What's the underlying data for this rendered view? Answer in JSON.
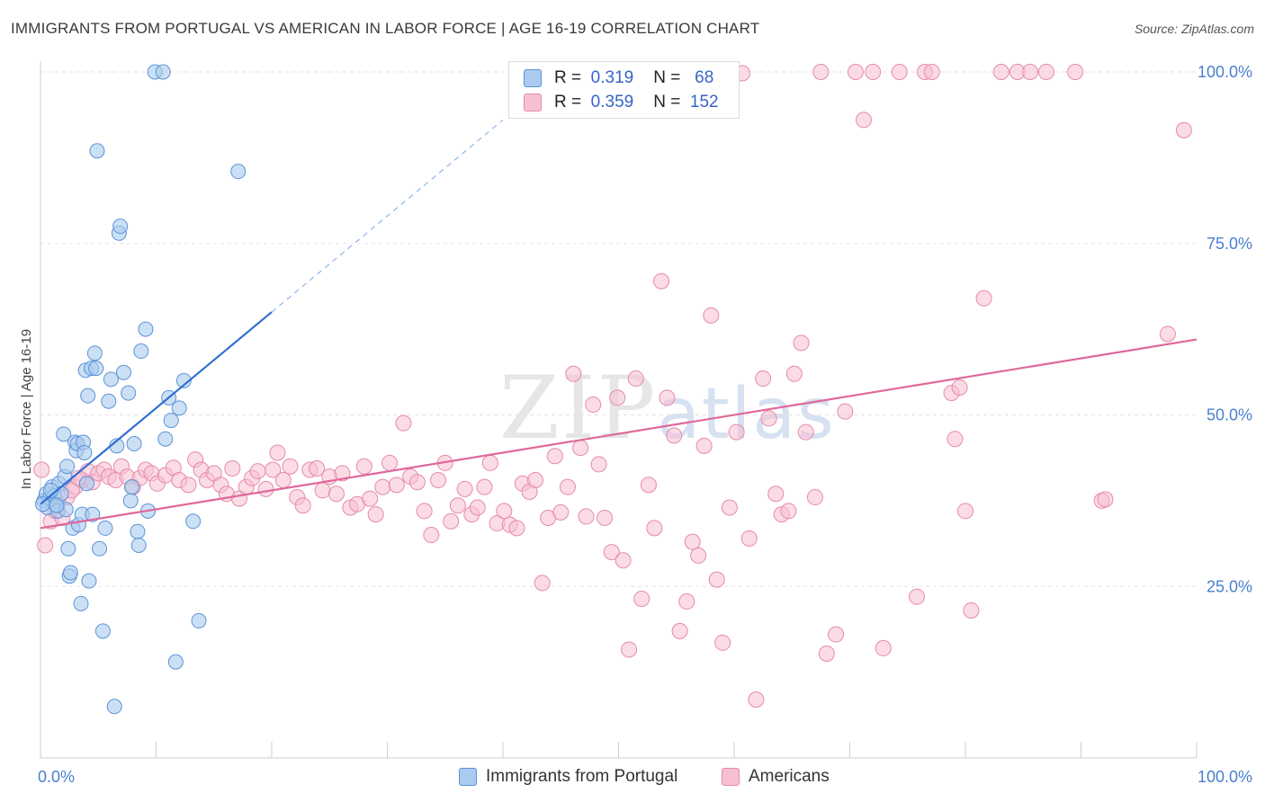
{
  "header": {
    "title": "IMMIGRANTS FROM PORTUGAL VS AMERICAN IN LABOR FORCE | AGE 16-19 CORRELATION CHART",
    "source": "Source: ZipAtlas.com"
  },
  "watermark": {
    "zip": "ZIP",
    "atlas": "atlas"
  },
  "legend": {
    "portugal": {
      "r_label": "R =",
      "r_value": "0.319",
      "n_label": "N =",
      "n_value": "68"
    },
    "americans": {
      "r_label": "R =",
      "r_value": "0.359",
      "n_label": "N =",
      "n_value": "152"
    }
  },
  "bottom_legend": {
    "portugal": "Immigrants from Portugal",
    "americans": "Americans"
  },
  "colors": {
    "portugal_fill": "#aacbef",
    "portugal_stroke": "#5b93d8",
    "portugal_line": "#2f6fd0",
    "americans_fill": "#f7c0d2",
    "americans_stroke": "#e68aa8",
    "americans_line": "#e0689a",
    "tick_text": "#4a7fd0"
  },
  "chart_data": {
    "type": "scatter",
    "title": "IMMIGRANTS FROM PORTUGAL VS AMERICAN IN LABOR FORCE | AGE 16-19 CORRELATION CHART",
    "xlabel": "",
    "ylabel": "In Labor Force | Age 16-19",
    "xlim": [
      0,
      100
    ],
    "ylim": [
      0,
      102
    ],
    "x_tick_labels": [
      "0.0%",
      "100.0%"
    ],
    "y_ticks": [
      25,
      50,
      75,
      100
    ],
    "y_tick_labels": [
      "25.0%",
      "50.0%",
      "75.0%",
      "100.0%"
    ],
    "grid": true,
    "series": [
      {
        "name": "Immigrants from Portugal",
        "r": 0.319,
        "n": 68,
        "trend": {
          "x0": 0,
          "y0": 37.0,
          "x1": 20,
          "y1": 65.0,
          "dashed_to_x": 40,
          "dashed_to_y": 93.0
        },
        "points": [
          [
            0.3,
            37.5
          ],
          [
            0.5,
            38.5
          ],
          [
            0.6,
            36.5
          ],
          [
            0.8,
            37.8
          ],
          [
            1.0,
            39.5
          ],
          [
            1.2,
            38.2
          ],
          [
            1.3,
            37.0
          ],
          [
            1.5,
            36.0
          ],
          [
            1.6,
            40.0
          ],
          [
            1.8,
            38.5
          ],
          [
            2.0,
            47.2
          ],
          [
            2.1,
            41.0
          ],
          [
            2.2,
            36.2
          ],
          [
            2.3,
            42.5
          ],
          [
            2.4,
            30.5
          ],
          [
            2.5,
            26.5
          ],
          [
            2.6,
            27.0
          ],
          [
            2.8,
            33.5
          ],
          [
            3.0,
            46.0
          ],
          [
            3.1,
            44.8
          ],
          [
            3.2,
            45.8
          ],
          [
            3.3,
            34.0
          ],
          [
            3.5,
            22.5
          ],
          [
            3.6,
            35.5
          ],
          [
            3.7,
            46.0
          ],
          [
            3.8,
            44.5
          ],
          [
            3.9,
            56.5
          ],
          [
            4.0,
            40.0
          ],
          [
            4.1,
            52.8
          ],
          [
            4.2,
            25.8
          ],
          [
            4.4,
            56.8
          ],
          [
            4.5,
            35.5
          ],
          [
            4.7,
            59.0
          ],
          [
            4.8,
            56.8
          ],
          [
            4.9,
            88.5
          ],
          [
            5.1,
            30.5
          ],
          [
            5.4,
            18.5
          ],
          [
            5.6,
            33.5
          ],
          [
            5.9,
            52.0
          ],
          [
            6.1,
            55.2
          ],
          [
            6.4,
            7.5
          ],
          [
            6.6,
            45.5
          ],
          [
            6.8,
            76.5
          ],
          [
            6.9,
            77.5
          ],
          [
            7.2,
            56.2
          ],
          [
            7.6,
            53.2
          ],
          [
            7.8,
            37.5
          ],
          [
            7.9,
            39.5
          ],
          [
            8.1,
            45.8
          ],
          [
            8.4,
            33.0
          ],
          [
            8.5,
            31.0
          ],
          [
            8.7,
            59.3
          ],
          [
            9.1,
            62.5
          ],
          [
            9.3,
            36.0
          ],
          [
            9.9,
            100.0
          ],
          [
            10.6,
            100.0
          ],
          [
            10.8,
            46.5
          ],
          [
            11.1,
            52.5
          ],
          [
            11.3,
            49.2
          ],
          [
            11.7,
            14.0
          ],
          [
            12.0,
            51.0
          ],
          [
            12.4,
            55.0
          ],
          [
            13.2,
            34.5
          ],
          [
            13.7,
            20.0
          ],
          [
            17.1,
            85.5
          ],
          [
            0.2,
            37.0
          ],
          [
            0.9,
            39.0
          ],
          [
            1.4,
            36.8
          ]
        ]
      },
      {
        "name": "Americans",
        "r": 0.359,
        "n": 152,
        "trend": {
          "x0": 0,
          "y0": 33.5,
          "x1": 100,
          "y1": 61.0
        },
        "points": [
          [
            0.4,
            31.0
          ],
          [
            0.9,
            34.5
          ],
          [
            1.3,
            36.0
          ],
          [
            1.9,
            35.0
          ],
          [
            2.3,
            38.0
          ],
          [
            3.0,
            39.5
          ],
          [
            3.6,
            40.5
          ],
          [
            4.1,
            41.8
          ],
          [
            4.5,
            40.2
          ],
          [
            5.0,
            41.5
          ],
          [
            5.5,
            42.0
          ],
          [
            5.9,
            41.0
          ],
          [
            6.5,
            40.5
          ],
          [
            7.0,
            42.5
          ],
          [
            7.5,
            41.0
          ],
          [
            8.0,
            39.5
          ],
          [
            8.6,
            40.8
          ],
          [
            9.1,
            42.0
          ],
          [
            9.6,
            41.5
          ],
          [
            10.1,
            40.0
          ],
          [
            10.8,
            41.2
          ],
          [
            11.5,
            42.3
          ],
          [
            12.0,
            40.5
          ],
          [
            12.8,
            39.8
          ],
          [
            13.4,
            43.5
          ],
          [
            13.9,
            42.0
          ],
          [
            14.4,
            40.5
          ],
          [
            15.0,
            41.5
          ],
          [
            15.6,
            39.8
          ],
          [
            16.1,
            38.5
          ],
          [
            16.6,
            42.2
          ],
          [
            17.2,
            37.8
          ],
          [
            17.8,
            39.5
          ],
          [
            18.3,
            40.8
          ],
          [
            18.8,
            41.8
          ],
          [
            19.5,
            39.2
          ],
          [
            20.1,
            42.0
          ],
          [
            20.5,
            44.5
          ],
          [
            21.0,
            40.5
          ],
          [
            21.6,
            42.5
          ],
          [
            22.2,
            38.0
          ],
          [
            22.7,
            36.8
          ],
          [
            23.3,
            42.0
          ],
          [
            23.9,
            42.2
          ],
          [
            24.4,
            39.0
          ],
          [
            25.0,
            41.0
          ],
          [
            25.6,
            38.5
          ],
          [
            26.1,
            41.5
          ],
          [
            26.8,
            36.5
          ],
          [
            27.4,
            37.0
          ],
          [
            28.0,
            42.5
          ],
          [
            28.5,
            37.8
          ],
          [
            29.0,
            35.5
          ],
          [
            29.6,
            39.5
          ],
          [
            30.2,
            43.0
          ],
          [
            30.8,
            39.8
          ],
          [
            31.4,
            48.8
          ],
          [
            32.0,
            41.0
          ],
          [
            32.6,
            40.2
          ],
          [
            33.2,
            36.0
          ],
          [
            33.8,
            32.5
          ],
          [
            34.4,
            40.5
          ],
          [
            35.0,
            43.0
          ],
          [
            35.5,
            34.5
          ],
          [
            36.1,
            36.8
          ],
          [
            36.7,
            39.2
          ],
          [
            37.3,
            35.5
          ],
          [
            37.8,
            36.5
          ],
          [
            38.4,
            39.5
          ],
          [
            38.9,
            43.0
          ],
          [
            39.5,
            34.2
          ],
          [
            40.1,
            36.0
          ],
          [
            40.6,
            34.0
          ],
          [
            41.2,
            33.5
          ],
          [
            41.7,
            40.0
          ],
          [
            42.3,
            38.8
          ],
          [
            42.8,
            40.5
          ],
          [
            43.4,
            25.5
          ],
          [
            43.9,
            35.0
          ],
          [
            44.5,
            44.0
          ],
          [
            45.0,
            35.8
          ],
          [
            45.6,
            39.5
          ],
          [
            46.1,
            56.0
          ],
          [
            46.7,
            45.2
          ],
          [
            47.2,
            35.2
          ],
          [
            47.8,
            51.5
          ],
          [
            48.3,
            42.8
          ],
          [
            48.8,
            35.0
          ],
          [
            49.4,
            30.0
          ],
          [
            49.9,
            52.5
          ],
          [
            50.4,
            28.8
          ],
          [
            50.9,
            15.8
          ],
          [
            51.5,
            55.3
          ],
          [
            52.0,
            23.2
          ],
          [
            52.6,
            39.8
          ],
          [
            53.1,
            33.5
          ],
          [
            53.7,
            69.5
          ],
          [
            54.2,
            52.5
          ],
          [
            54.8,
            47.0
          ],
          [
            55.3,
            18.5
          ],
          [
            55.9,
            22.8
          ],
          [
            56.4,
            31.5
          ],
          [
            56.9,
            29.5
          ],
          [
            57.4,
            45.5
          ],
          [
            58.0,
            64.5
          ],
          [
            58.5,
            26.0
          ],
          [
            59.0,
            16.8
          ],
          [
            59.6,
            36.5
          ],
          [
            60.2,
            47.5
          ],
          [
            60.7,
            99.8
          ],
          [
            61.3,
            32.0
          ],
          [
            61.9,
            8.5
          ],
          [
            62.5,
            55.3
          ],
          [
            63.0,
            49.5
          ],
          [
            63.6,
            38.5
          ],
          [
            64.1,
            35.5
          ],
          [
            64.7,
            36.0
          ],
          [
            65.2,
            56.0
          ],
          [
            65.8,
            60.5
          ],
          [
            66.2,
            47.5
          ],
          [
            67.0,
            38.0
          ],
          [
            67.5,
            100.0
          ],
          [
            68.0,
            15.2
          ],
          [
            68.8,
            18.0
          ],
          [
            69.6,
            50.5
          ],
          [
            70.5,
            100.0
          ],
          [
            71.2,
            93.0
          ],
          [
            72.0,
            100.0
          ],
          [
            72.9,
            16.0
          ],
          [
            74.3,
            100.0
          ],
          [
            75.8,
            23.5
          ],
          [
            76.5,
            100.0
          ],
          [
            77.1,
            100.0
          ],
          [
            78.8,
            53.2
          ],
          [
            79.1,
            46.5
          ],
          [
            80.5,
            21.5
          ],
          [
            79.5,
            54.0
          ],
          [
            80.0,
            36.0
          ],
          [
            81.6,
            67.0
          ],
          [
            83.1,
            100.0
          ],
          [
            84.5,
            100.0
          ],
          [
            85.6,
            100.0
          ],
          [
            87.0,
            100.0
          ],
          [
            89.5,
            100.0
          ],
          [
            91.8,
            37.5
          ],
          [
            92.1,
            37.7
          ],
          [
            97.5,
            61.8
          ],
          [
            98.9,
            91.5
          ],
          [
            0.1,
            42.0
          ],
          [
            1.5,
            37.2
          ],
          [
            2.7,
            39.0
          ],
          [
            3.3,
            40.8
          ]
        ]
      }
    ]
  }
}
